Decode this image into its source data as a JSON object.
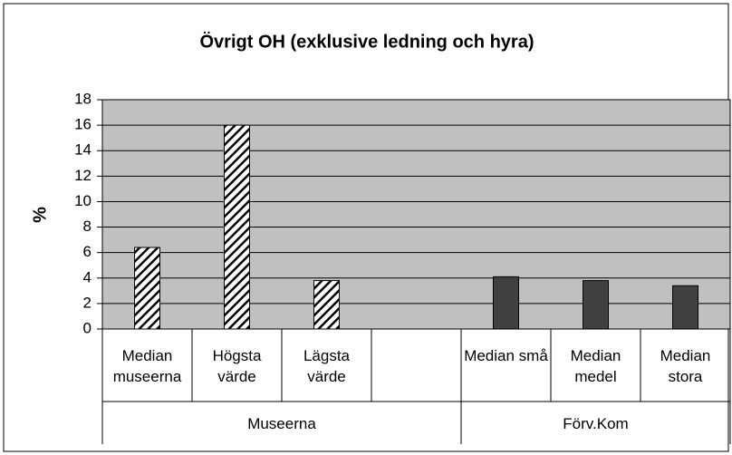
{
  "chart_data": {
    "type": "bar",
    "title": "Övrigt OH (exklusive ledning och hyra)",
    "y_label": "%",
    "groups": [
      {
        "label": "Museerna",
        "fill": "hatch",
        "categories": [
          "Median museerna",
          "Högsta värde",
          "Lägsta värde",
          null
        ],
        "values": [
          6.4,
          16,
          3.8,
          null
        ]
      },
      {
        "label": "Förv.Kom",
        "fill": "#404040",
        "categories": [
          "Median små",
          "Median medel",
          "Median stora"
        ],
        "values": [
          4.1,
          3.8,
          3.4
        ]
      }
    ],
    "ylim": [
      0,
      18
    ],
    "yticks": [
      0,
      2,
      4,
      6,
      8,
      10,
      12,
      14,
      16,
      18
    ],
    "grid": true,
    "plot_background": "#c0c0c0"
  }
}
